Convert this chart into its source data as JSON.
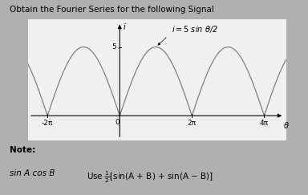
{
  "title": "Obtain the Fourier Series for the following Signal",
  "amplitude": 5,
  "x_min": -8.0,
  "x_max": 14.5,
  "y_min": -1.8,
  "y_max": 7.0,
  "two_pi": 6.2831853,
  "x_ticks": [
    -6.2831853,
    0,
    6.2831853,
    12.5663706
  ],
  "x_tick_labels": [
    "-2π",
    "0",
    "2π",
    "4π"
  ],
  "y_tick_val": 5,
  "y_tick_label": "5",
  "note_text": "Note:",
  "formula_left": "sin A cos B",
  "formula_right": "Use $\\frac{1}{2}$[sin(A + B) + sin(A − B)]",
  "bg_color": "#b0b0b0",
  "plot_bg_color": "#f0f0f0",
  "line_color": "#808080",
  "axis_color": "#000000",
  "text_color": "#000000",
  "font_size_title": 7.5,
  "font_size_tick": 6.5,
  "font_size_label": 7.0,
  "font_size_note": 7.5,
  "font_size_formula": 7.5
}
